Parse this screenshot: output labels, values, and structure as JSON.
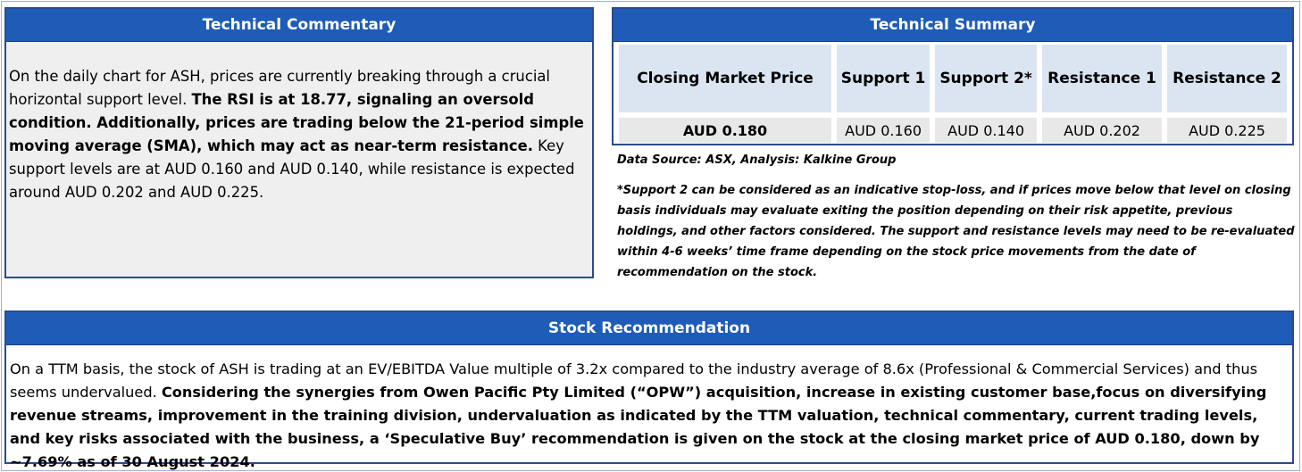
{
  "commentary": {
    "title": "Technical Commentary",
    "text_part1": "On the daily chart for ASH, prices are currently breaking through a crucial horizontal support level. ",
    "text_bold": "The RSI is at 18.77, signaling an oversold condition. Additionally, prices are trading below the 21-period simple moving average (SMA), which may act as near-term resistance.",
    "text_part2": " Key support levels are at AUD 0.160 and AUD 0.140, while resistance is expected around AUD 0.202 and AUD 0.225."
  },
  "summary": {
    "title": "Technical Summary",
    "headers": [
      "Closing Market Price",
      "Support 1",
      "Support 2*",
      "Resistance 1",
      "Resistance 2"
    ],
    "values": [
      "AUD 0.180",
      "AUD 0.160",
      "AUD 0.140",
      "AUD 0.202",
      "AUD 0.225"
    ]
  },
  "notes": {
    "source": "Data Source: ASX, Analysis: Kalkine Group",
    "disclaimer": "*Support 2 can be considered as an indicative stop-loss, and if prices move below that level on closing basis individuals may evaluate exiting the position depending on their risk appetite, previous holdings, and other factors considered. The support and resistance levels may need to be re-evaluated within 4-6 weeks’ time frame depending on the stock price movements from the date of recommendation on the stock."
  },
  "recommendation": {
    "title": "Stock Recommendation",
    "text_part1": "On a TTM basis, the stock of ASH is trading at an EV/EBITDA Value multiple of 3.2x compared to the industry average of 8.6x (Professional & Commercial Services) and thus seems undervalued. ",
    "text_bold": "Considering the synergies from Owen Pacific Pty Limited (“OPW”) acquisition, increase in existing customer base,focus on diversifying revenue streams, improvement in the training division, undervaluation as indicated by the TTM valuation, technical commentary, current trading levels, and key risks associated with the business, a ‘Speculative Buy’ recommendation is given on the stock at the closing market price of AUD 0.180, down by ~7.69% as of 30 August 2024."
  }
}
